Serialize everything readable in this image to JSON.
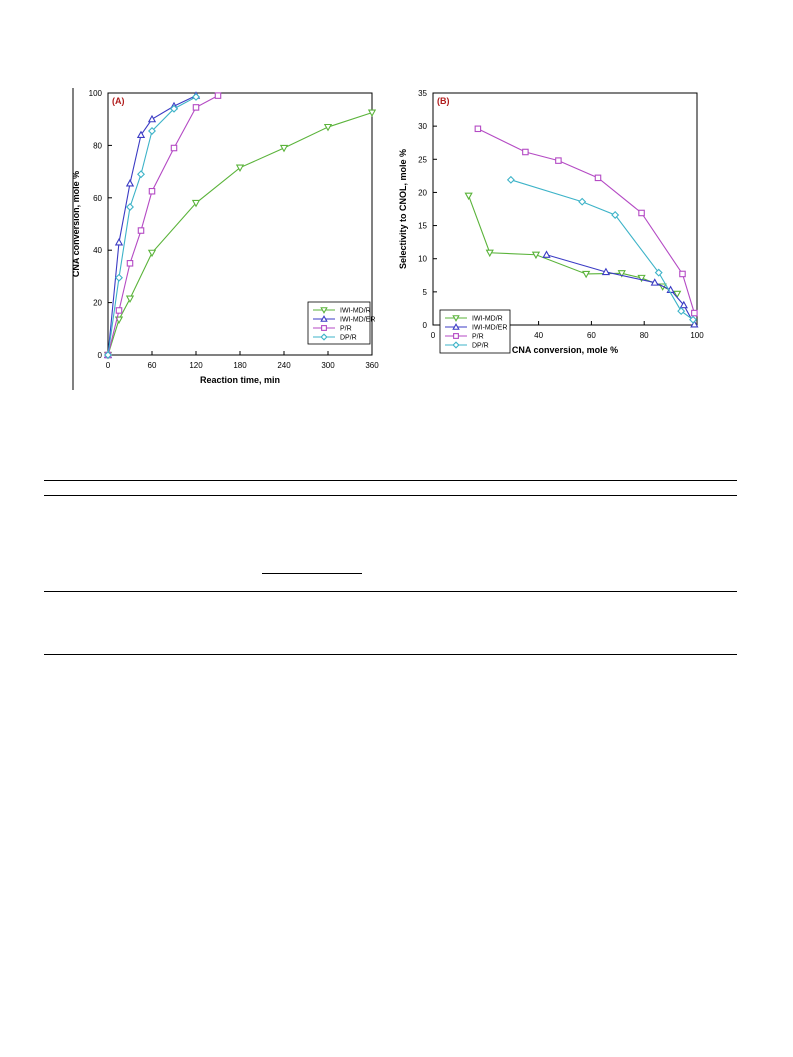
{
  "chart_data": [
    {
      "type": "line",
      "panel_label": "(A)",
      "xlabel": "Reaction time, min",
      "ylabel": "CNA conversion, mole %",
      "xlim": [
        0,
        360
      ],
      "ylim": [
        0,
        100
      ],
      "xticks": [
        0,
        60,
        120,
        180,
        240,
        300,
        360
      ],
      "yticks": [
        0,
        20,
        40,
        60,
        80,
        100
      ],
      "legend_position": "bottom-right",
      "grid": false,
      "series": [
        {
          "name": "IWI-MD/R",
          "color": "#5ab33a",
          "marker": "triangle-down",
          "x": [
            0,
            15,
            30,
            60,
            120,
            180,
            240,
            300,
            360
          ],
          "y": [
            0,
            13.5,
            21.5,
            39,
            58,
            71.5,
            79,
            87,
            92.5
          ]
        },
        {
          "name": "IWI-MD/ER",
          "color": "#3b3bc4",
          "marker": "triangle-up",
          "x": [
            0,
            15,
            30,
            45,
            60,
            90,
            120
          ],
          "y": [
            0,
            43,
            65.5,
            84,
            90,
            95,
            99
          ]
        },
        {
          "name": "P/R",
          "color": "#b44ac4",
          "marker": "square",
          "x": [
            0,
            15,
            30,
            45,
            60,
            90,
            120,
            150
          ],
          "y": [
            0,
            17,
            35,
            47.5,
            62.5,
            79,
            94.5,
            99
          ]
        },
        {
          "name": "DP/R",
          "color": "#3db3c8",
          "marker": "diamond",
          "x": [
            0,
            15,
            30,
            45,
            60,
            90,
            120
          ],
          "y": [
            0,
            29.5,
            56.5,
            69,
            85.5,
            94,
            98.5
          ]
        }
      ]
    },
    {
      "type": "line",
      "panel_label": "(B)",
      "xlabel": "CNA conversion, mole %",
      "ylabel": "Selectivity to CNOL, mole %",
      "xlim": [
        0,
        100
      ],
      "ylim": [
        0,
        35
      ],
      "xticks": [
        0,
        20,
        40,
        60,
        80,
        100
      ],
      "yticks": [
        0,
        5,
        10,
        15,
        20,
        25,
        30,
        35
      ],
      "legend_position": "bottom-left",
      "grid": false,
      "series": [
        {
          "name": "IWI-MD/R",
          "color": "#5ab33a",
          "marker": "triangle-down",
          "x": [
            13.5,
            21.5,
            39,
            58,
            71.5,
            79,
            87,
            92.5
          ],
          "y": [
            19.5,
            10.9,
            10.6,
            7.7,
            7.8,
            7.1,
            5.8,
            4.7
          ]
        },
        {
          "name": "IWI-MD/ER",
          "color": "#3b3bc4",
          "marker": "triangle-up",
          "x": [
            43,
            65.5,
            84,
            90,
            95,
            99
          ],
          "y": [
            10.6,
            8.0,
            6.4,
            5.3,
            3.0,
            0.1
          ]
        },
        {
          "name": "P/R",
          "color": "#b44ac4",
          "marker": "square",
          "x": [
            17,
            35,
            47.5,
            62.5,
            79,
            94.5,
            99
          ],
          "y": [
            29.6,
            26.1,
            24.8,
            22.2,
            16.9,
            7.7,
            1.8
          ]
        },
        {
          "name": "DP/R",
          "color": "#3db3c8",
          "marker": "diamond",
          "x": [
            29.5,
            56.5,
            69,
            85.5,
            94,
            98.5
          ],
          "y": [
            21.9,
            18.6,
            16.6,
            7.9,
            2.1,
            0.8
          ]
        }
      ]
    }
  ]
}
